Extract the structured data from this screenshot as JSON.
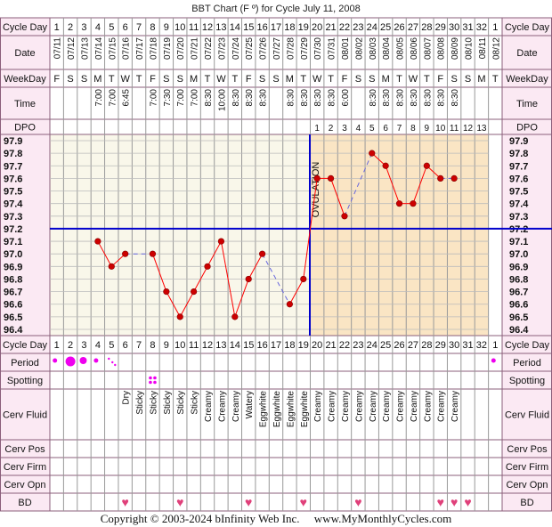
{
  "title": "BBT Chart (F º) for Cycle July 11, 2008",
  "footer": "Copyright © 2003-2024 bInfinity Web Inc.     www.MyMonthlyCycles.com",
  "ovulation_label": "OVULATION",
  "row_labels": {
    "cycle_day": "Cycle Day",
    "date": "Date",
    "weekday": "WeekDay",
    "time": "Time",
    "dpo": "DPO",
    "period": "Period",
    "spotting": "Spotting",
    "cerv_fluid": "Cerv Fluid",
    "cerv_pos": "Cerv Pos",
    "cerv_firm": "Cerv Firm",
    "cerv_opn": "Cerv Opn",
    "bd": "BD"
  },
  "cycle_days": [
    "1",
    "2",
    "3",
    "4",
    "5",
    "6",
    "7",
    "8",
    "9",
    "10",
    "11",
    "12",
    "13",
    "14",
    "15",
    "16",
    "17",
    "18",
    "19",
    "20",
    "21",
    "22",
    "23",
    "24",
    "25",
    "26",
    "27",
    "28",
    "29",
    "30",
    "31",
    "32",
    "1"
  ],
  "dates": [
    "07/11",
    "07/12",
    "07/13",
    "07/14",
    "07/15",
    "07/16",
    "07/17",
    "07/18",
    "07/19",
    "07/20",
    "07/21",
    "07/22",
    "07/23",
    "07/24",
    "07/25",
    "07/26",
    "07/27",
    "07/28",
    "07/29",
    "07/30",
    "07/31",
    "08/01",
    "08/02",
    "08/03",
    "08/04",
    "08/05",
    "08/06",
    "08/07",
    "08/08",
    "08/09",
    "08/10",
    "08/11",
    "08/12"
  ],
  "weekdays": [
    "F",
    "S",
    "S",
    "M",
    "T",
    "W",
    "T",
    "F",
    "S",
    "S",
    "M",
    "T",
    "W",
    "T",
    "F",
    "S",
    "S",
    "M",
    "T",
    "W",
    "T",
    "F",
    "S",
    "S",
    "M",
    "T",
    "W",
    "T",
    "F",
    "S",
    "S",
    "M",
    "T"
  ],
  "times": [
    "",
    "",
    "",
    "7:00",
    "7:00",
    "6:45",
    "",
    "7:00",
    "7:30",
    "7:00",
    "7:00",
    "8:30",
    "10:00",
    "8:30",
    "8:30",
    "8:30",
    "",
    "8:30",
    "8:30",
    "8:30",
    "8:30",
    "6:00",
    "",
    "8:30",
    "8:30",
    "8:30",
    "8:30",
    "8:30",
    "8:30",
    "8:30",
    "",
    "",
    ""
  ],
  "dpo": [
    "",
    "",
    "",
    "",
    "",
    "",
    "",
    "",
    "",
    "",
    "",
    "",
    "",
    "",
    "",
    "",
    "",
    "",
    "",
    "1",
    "2",
    "3",
    "4",
    "5",
    "6",
    "7",
    "8",
    "9",
    "10",
    "11",
    "12",
    "13",
    ""
  ],
  "temp_labels": [
    "97.9",
    "97.8",
    "97.7",
    "97.6",
    "97.5",
    "97.4",
    "97.3",
    "97.2",
    "97.1",
    "97.0",
    "96.9",
    "96.8",
    "96.7",
    "96.6",
    "96.5",
    "96.4"
  ],
  "period": [
    "dot-small",
    "dot-large",
    "dot-medium",
    "dot-small",
    "streaks",
    "",
    "",
    "",
    "",
    "",
    "",
    "",
    "",
    "",
    "",
    "",
    "",
    "",
    "",
    "",
    "",
    "",
    "",
    "",
    "",
    "",
    "",
    "",
    "",
    "",
    "",
    "",
    "dot-small"
  ],
  "spotting": [
    "",
    "",
    "",
    "",
    "",
    "",
    "",
    "spot",
    "",
    "",
    "",
    "",
    "",
    "",
    "",
    "",
    "",
    "",
    "",
    "",
    "",
    "",
    "",
    "",
    "",
    "",
    "",
    "",
    "",
    "",
    "",
    "",
    ""
  ],
  "cerv_fluid": [
    "",
    "",
    "",
    "",
    "",
    "Dry",
    "Sticky",
    "Sticky",
    "Sticky",
    "Sticky",
    "Sticky",
    "Creamy",
    "Creamy",
    "Creamy",
    "Watery",
    "Eggwhite",
    "Eggwhite",
    "Eggwhite",
    "Eggwhite",
    "Creamy",
    "Creamy",
    "Creamy",
    "Creamy",
    "Creamy",
    "Creamy",
    "Creamy",
    "Creamy",
    "Creamy",
    "Creamy",
    "Creamy",
    "",
    "",
    ""
  ],
  "bd": [
    "",
    "",
    "",
    "",
    "",
    "♥",
    "",
    "",
    "",
    "♥",
    "",
    "",
    "",
    "",
    "♥",
    "",
    "",
    "",
    "♥",
    "",
    "",
    "",
    "♥",
    "",
    "",
    "",
    "",
    "",
    "♥",
    "♥",
    "♥",
    "",
    ""
  ],
  "colors": {
    "border": "#8b5f7b",
    "pink_bg": "#fbe9f3",
    "pre_bg": "#f9f7ea",
    "post_bg": "#fae5c4",
    "coverline": "#0000cc",
    "ovulation": "#0000cc",
    "temp_line": "#ff0000",
    "dot": "#cc0000",
    "heart": "#e0407a",
    "period_dot": "#ee00ee"
  },
  "chart_data": {
    "type": "line",
    "ylim": [
      96.4,
      97.9
    ],
    "coverline": 97.2,
    "ovulation_day": 19,
    "days": [
      4,
      5,
      6,
      8,
      9,
      10,
      11,
      12,
      13,
      14,
      15,
      16,
      18,
      19,
      20,
      21,
      22,
      24,
      25,
      26,
      27,
      28,
      29,
      30
    ],
    "temps": [
      97.1,
      96.9,
      97.0,
      97.0,
      96.7,
      96.5,
      96.7,
      96.9,
      97.1,
      96.5,
      96.8,
      97.0,
      96.6,
      96.8,
      97.6,
      97.6,
      97.3,
      97.8,
      97.7,
      97.4,
      97.4,
      97.7,
      97.6,
      97.6
    ],
    "dashed_after": [
      6,
      16,
      22,
      29
    ]
  }
}
